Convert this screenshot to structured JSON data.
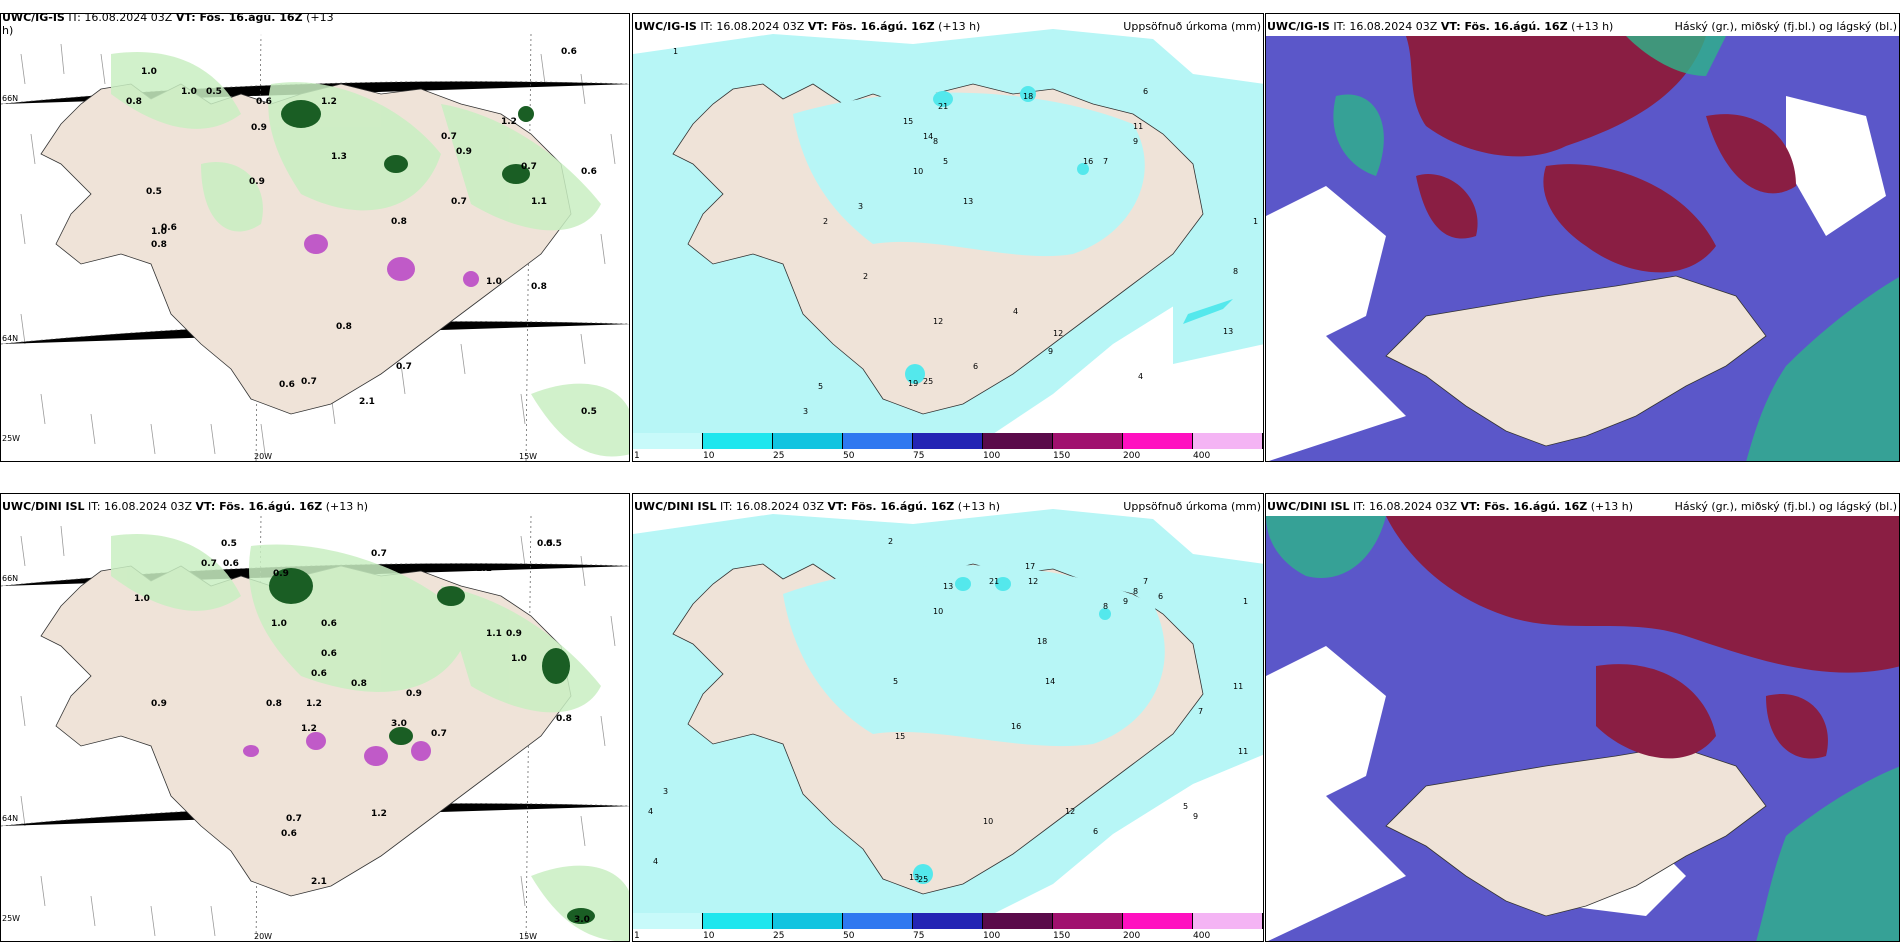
{
  "colors": {
    "land": "#efe3d8",
    "green_light": "#c9efc2",
    "green_mid": "#8fd98b",
    "green_dark": "#1a5e24",
    "snow_magenta": "#c05ac8",
    "cyan_light": "#b7f6f6",
    "cyan_mid": "#54e8ec",
    "cloud_purple": "#5b57c9",
    "cloud_maroon": "#8a1e43",
    "cloud_teal": "#2db48a"
  },
  "rows": [
    {
      "precip_panel": {
        "model": "UWC/IG-IS",
        "it": "IT: 16.08.2024 03Z",
        "vt": "VT: Fös. 16.ágú. 16Z",
        "lead": "(+13",
        "lead2": "h)",
        "lon_labels": [
          "20W",
          "15W"
        ],
        "lat_labels": [
          "66N",
          "64N",
          "25W"
        ],
        "value_labels": [
          "0.6",
          "0.9",
          "1.0",
          "1.2",
          "0.5",
          "0.8",
          "0.7",
          "1.1",
          "1.3",
          "0.6",
          "0.8",
          "0.7",
          "0.9",
          "1.0",
          "0.5",
          "0.8",
          "1.0",
          "1.2",
          "0.6",
          "0.7",
          "0.9",
          "0.8",
          "0.7",
          "2.1",
          "0.6",
          "0.7",
          "0.5",
          "1.0",
          "0.8",
          "0.6"
        ]
      },
      "accum_panel": {
        "model": "UWC/IG-IS",
        "it": "IT: 16.08.2024 03Z",
        "vt": "VT: Fös. 16.ágú. 16Z",
        "lead": "(+13 h)",
        "right_title": "Uppsöfnuð úrkoma (mm)",
        "value_labels": [
          "1",
          "2",
          "3",
          "4",
          "5",
          "6",
          "7",
          "8",
          "9",
          "10",
          "11",
          "12",
          "13",
          "14",
          "15",
          "16",
          "18",
          "21",
          "25",
          "19",
          "12",
          "13",
          "3",
          "5",
          "9",
          "6",
          "4",
          "2",
          "1",
          "8"
        ]
      },
      "cloud_panel": {
        "model": "UWC/IG-IS",
        "it": "IT: 16.08.2024 03Z",
        "vt": "VT: Fös. 16.ágú. 16Z",
        "lead": "(+13 h)",
        "right_title": "Háský (gr.), miðský (fj.bl.) og lágský (bl.)"
      }
    },
    {
      "precip_panel": {
        "model": "UWC/DINI ISL",
        "it": "IT: 16.08.2024 03Z",
        "vt": "VT: Fös. 16.ágú. 16Z",
        "lead": "(+13 h)",
        "lead2": "",
        "lon_labels": [
          "20W",
          "15W"
        ],
        "lat_labels": [
          "66N",
          "64N",
          "25W"
        ],
        "value_labels": [
          "0.5",
          "0.7",
          "0.6",
          "0.9",
          "1.0",
          "0.8",
          "0.7",
          "1.2",
          "0.6",
          "0.9",
          "1.1",
          "0.8",
          "1.0",
          "0.7",
          "0.9",
          "0.5",
          "0.6",
          "1.2",
          "3.0",
          "0.8",
          "0.6",
          "0.9",
          "1.1",
          "2.1",
          "1.2",
          "0.6",
          "3.0",
          "0.7",
          "0.5",
          "1.0"
        ]
      },
      "accum_panel": {
        "model": "UWC/DINI ISL",
        "it": "IT: 16.08.2024 03Z",
        "vt": "VT: Fös. 16.ágú. 16Z",
        "lead": "(+13 h)",
        "right_title": "Uppsöfnuð úrkoma (mm)",
        "value_labels": [
          "1",
          "2",
          "3",
          "4",
          "5",
          "6",
          "7",
          "8",
          "9",
          "10",
          "11",
          "12",
          "13",
          "14",
          "15",
          "16",
          "17",
          "18",
          "21",
          "25",
          "13",
          "12",
          "11",
          "10",
          "9",
          "8",
          "7",
          "6",
          "5",
          "4"
        ]
      },
      "cloud_panel": {
        "model": "UWC/DINI ISL",
        "it": "IT: 16.08.2024 03Z",
        "vt": "VT: Fös. 16.ágú. 16Z",
        "lead": "(+13 h)",
        "right_title": "Háský (gr.), miðský (fj.bl.) og lágský (bl.)"
      }
    }
  ],
  "colorbar": {
    "ticks": [
      "1",
      "10",
      "25",
      "50",
      "75",
      "100",
      "150",
      "200",
      "400"
    ],
    "colors": [
      "#c8fafa",
      "#1ee6ee",
      "#12c4e0",
      "#2f78f0",
      "#2424b4",
      "#5a0a4a",
      "#a0106e",
      "#ff10c0",
      "#f4b4f4"
    ]
  }
}
